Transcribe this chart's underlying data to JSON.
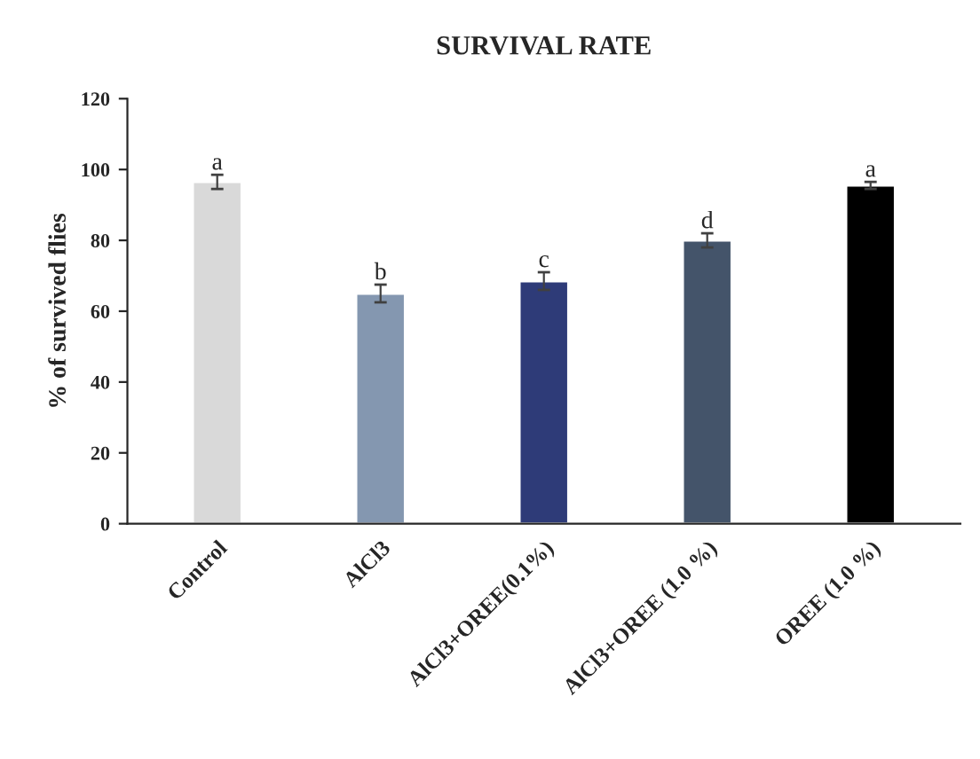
{
  "chart_data": {
    "type": "bar",
    "title": "SURVIVAL RATE",
    "ylabel": "% of survived flies",
    "categories": [
      "Control",
      "AlCl3",
      "AlCl3+OREE(0.1%)",
      "AlCl3+OREE (1.0 %)",
      "OREE (1.0 %)"
    ],
    "values": [
      96.5,
      65,
      68.5,
      80,
      95.5
    ],
    "errors": [
      2,
      2.5,
      2.5,
      2,
      1
    ],
    "colors": [
      "#d9d9d9",
      "#8497b0",
      "#2e3b78",
      "#44546a",
      "#000000"
    ],
    "ylim": [
      0,
      120
    ],
    "yticks": [
      0,
      20,
      40,
      60,
      80,
      100,
      120
    ],
    "grid": false,
    "annotations": [
      {
        "text": "a",
        "x": "Control",
        "y": 98.5
      },
      {
        "text": "b",
        "x": "AlCl3",
        "y": 67.5
      },
      {
        "text": "c",
        "x": "AlCl3+OREE(0.1%)",
        "y": 71
      },
      {
        "text": "d",
        "x": "AlCl3+OREE (1.0 %)",
        "y": 82
      },
      {
        "text": "a",
        "x": "OREE (1.0 %)",
        "y": 96.5
      }
    ]
  }
}
